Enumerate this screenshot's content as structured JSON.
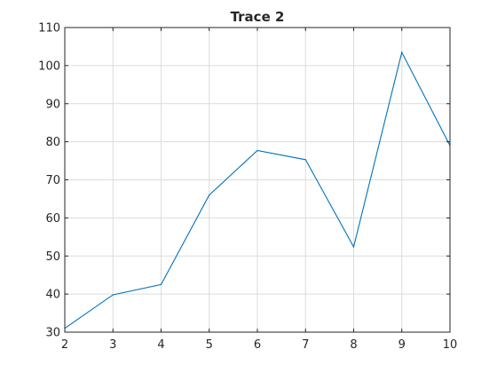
{
  "chart_data": {
    "type": "line",
    "title": "Trace 2",
    "xlabel": "",
    "ylabel": "",
    "xlim": [
      2,
      10
    ],
    "ylim": [
      30,
      110
    ],
    "x_ticks": [
      2,
      3,
      4,
      5,
      6,
      7,
      8,
      9,
      10
    ],
    "y_ticks": [
      30,
      40,
      50,
      60,
      70,
      80,
      90,
      100,
      110
    ],
    "grid": true,
    "series": [
      {
        "color": "#0072bd",
        "x": [
          2,
          3,
          4,
          5,
          6,
          7,
          8,
          9,
          10
        ],
        "y": [
          31,
          39.8,
          42.5,
          66,
          77.7,
          75.3,
          52.4,
          103.5,
          79
        ]
      }
    ]
  }
}
